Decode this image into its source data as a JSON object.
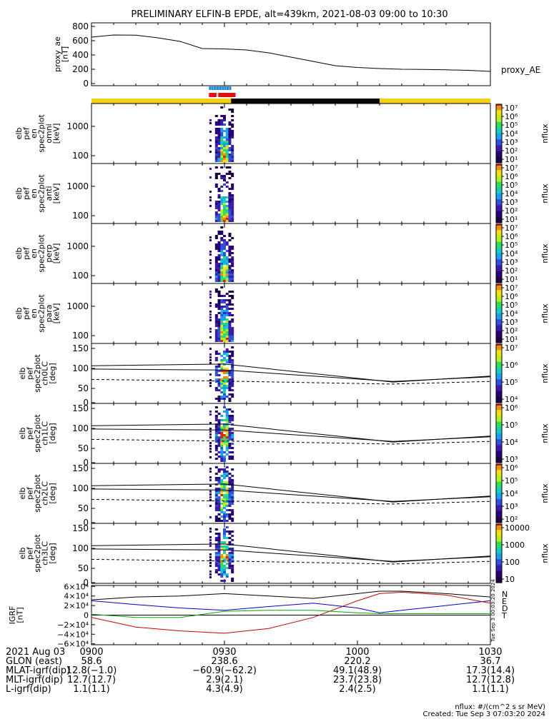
{
  "title": "PRELIMINARY ELFIN-B EPDE, alt=439km, 2021-08-03 09:00 to 10:30",
  "time_ticks": [
    "0900",
    "0930",
    "1000",
    "1030"
  ],
  "colors": {
    "yellow": "#f5d014",
    "black": "#000000",
    "blue": "#1e8cdc",
    "red": "#e01010",
    "bx": "#0000cc",
    "by": "#cc0000",
    "bz": "#00aa00",
    "bt": "#000000"
  },
  "chart_data": [
    {
      "type": "line",
      "ylabel": "proxy_ae\n[nT]",
      "yticks": [
        "800",
        "600",
        "400",
        "200",
        "0"
      ],
      "ylim": [
        -30,
        850
      ],
      "series_label": "proxy_AE",
      "x_min": [
        0,
        5,
        10,
        15,
        20,
        25,
        30,
        35,
        40,
        45,
        50,
        55,
        60,
        65,
        70,
        75,
        80,
        85,
        90
      ],
      "values": [
        650,
        680,
        678,
        640,
        590,
        490,
        485,
        470,
        430,
        370,
        310,
        250,
        225,
        210,
        200,
        198,
        192,
        185,
        170
      ]
    },
    {
      "type": "bar",
      "ylabel": "",
      "segments": [
        {
          "row": "top",
          "color": "blue",
          "from": 26.5,
          "to": 28.2
        },
        {
          "row": "top",
          "color": "blue",
          "from": 28.3,
          "to": 31.5
        },
        {
          "row": "mid",
          "color": "red",
          "from": 26.5,
          "to": 28.2
        },
        {
          "row": "mid",
          "color": "red",
          "from": 28.6,
          "to": 32.5
        },
        {
          "row": "base",
          "color": "yellow",
          "from": 0,
          "to": 31.5
        },
        {
          "row": "base",
          "color": "black",
          "from": 31.5,
          "to": 65
        },
        {
          "row": "base",
          "color": "yellow",
          "from": 65,
          "to": 90
        }
      ]
    },
    {
      "type": "heatmap",
      "ylabel": "elb\npef\nen\nspec2plot\nomni\n[keV]",
      "yticks": [
        "1000",
        "100"
      ],
      "cbar_ticks": [
        "10⁷",
        "10⁶",
        "10⁵",
        "10⁴",
        "10³",
        "10²",
        "10¹"
      ],
      "cbar_label": "nflux"
    },
    {
      "type": "heatmap",
      "ylabel": "elb\npef\nen\nspec2plot\nanti\n[keV]",
      "yticks": [
        "1000",
        "100"
      ],
      "cbar_ticks": [
        "10⁷",
        "10⁶",
        "10⁵",
        "10⁴",
        "10³",
        "10²",
        "10¹"
      ],
      "cbar_label": "nflux"
    },
    {
      "type": "heatmap",
      "ylabel": "elb\npef\nen\nspec2plot\nperp\n[keV]",
      "yticks": [
        "1000",
        "100"
      ],
      "cbar_ticks": [
        "10⁷",
        "10⁶",
        "10⁵",
        "10⁴",
        "10³",
        "10²",
        "10¹"
      ],
      "cbar_label": "nflux"
    },
    {
      "type": "heatmap",
      "ylabel": "elb\npef\nen\nspec2plot\npara\n[keV]",
      "yticks": [
        "1000",
        "100"
      ],
      "cbar_ticks": [
        "10⁷",
        "10⁶",
        "10⁵",
        "10⁴",
        "10³",
        "10²",
        "10¹"
      ],
      "cbar_label": "nflux"
    },
    {
      "type": "heatmap",
      "ylabel": "elb\npef\nspec2plot\nch0LC\n[deg]",
      "yticks": [
        "150",
        "100",
        "50",
        "0"
      ],
      "cbar_ticks": [
        "10⁷",
        "10⁶",
        "10⁵",
        "10⁴"
      ],
      "cbar_label": "nflux"
    },
    {
      "type": "heatmap",
      "ylabel": "elb\npef\nspec2plot\nch1LC\n[deg]",
      "yticks": [
        "150",
        "100",
        "50",
        "0"
      ],
      "cbar_ticks": [
        "10⁶",
        "10⁵",
        "10⁴",
        "10³"
      ],
      "cbar_label": "nflux"
    },
    {
      "type": "heatmap",
      "ylabel": "elb\npef\nspec2plot\nch2LC\n[deg]",
      "yticks": [
        "150",
        "100",
        "50",
        "0"
      ],
      "cbar_ticks": [
        "10⁶",
        "10⁵",
        "10⁴",
        "10³",
        "10²"
      ],
      "cbar_label": "nflux"
    },
    {
      "type": "heatmap",
      "ylabel": "elb\npef\nspec2plot\nch3LC\n[deg]",
      "yticks": [
        "150",
        "100",
        "50",
        "0"
      ],
      "cbar_ticks": [
        "10000",
        "1000",
        "100",
        "10"
      ],
      "cbar_label": "nflux"
    },
    {
      "type": "line",
      "ylabel": "IGRF\n[nT]",
      "yticks": [
        "6×10⁴",
        "4×10⁴",
        "2×10⁴",
        "0",
        "−2×10⁴",
        "−4×10⁴",
        "−6×10⁴"
      ],
      "ylim": [
        -62000,
        62000
      ],
      "legend": [
        "N",
        "E",
        "D",
        "T"
      ],
      "x_min": [
        0,
        10,
        20,
        30,
        40,
        50,
        60,
        65,
        70,
        80,
        90
      ],
      "series": [
        {
          "name": "N",
          "values": [
            30000,
            22000,
            15000,
            10000,
            18000,
            25000,
            15000,
            5000,
            10000,
            20000,
            30000
          ]
        },
        {
          "name": "E",
          "values": [
            -5000,
            -25000,
            -33000,
            -38000,
            -28000,
            -5000,
            30000,
            45000,
            48000,
            42000,
            25000
          ]
        },
        {
          "name": "D",
          "values": [
            2000,
            -5000,
            -5000,
            8000,
            10000,
            10000,
            5000,
            3000,
            3000,
            3000,
            3000
          ]
        },
        {
          "name": "T",
          "values": [
            32000,
            38000,
            40000,
            45000,
            40000,
            35000,
            45000,
            50000,
            50000,
            45000,
            38000
          ]
        }
      ]
    }
  ],
  "footer": {
    "rows": [
      {
        "label": "2021 Aug 03",
        "values": [
          "0900",
          "0930",
          "1000",
          "1030"
        ]
      },
      {
        "label": "GLON (east)",
        "values": [
          "58.6",
          "238.6",
          "220.2",
          "36.7"
        ]
      },
      {
        "label": "MLAT-igrf(dip)",
        "values": [
          "12.8(−1.0)",
          "−60.9(−62.2)",
          "49.1(48.9)",
          "17.3(14.4)"
        ]
      },
      {
        "label": "MLT-igrf(dip)",
        "values": [
          "12.7(12.7)",
          "2.9(2.1)",
          "23.7(23.8)",
          "12.7(12.8)"
        ]
      },
      {
        "label": "L-igrf(dip)",
        "values": [
          "1.1(1.1)",
          "4.3(4.9)",
          "2.4(2.5)",
          "1.1(1.1)"
        ]
      }
    ],
    "note_units": "nflux: #/(cm^2 s sr MeV)",
    "note_created": "Created: Tue Sep  3 07:03:20 2024",
    "side_stamp": "Tue Sep  3 00:03:20 2024"
  }
}
